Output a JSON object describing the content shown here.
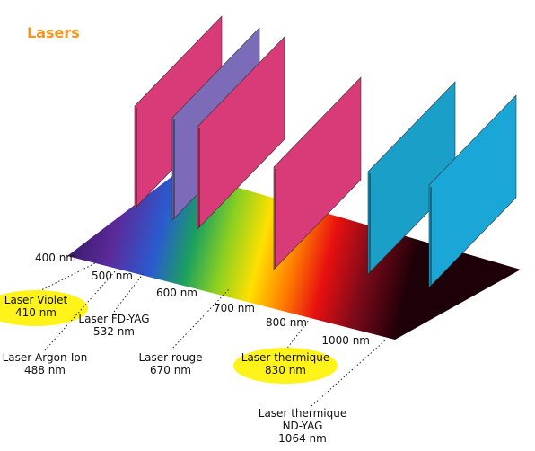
{
  "title": "Lasers",
  "scale": [
    "400 nm",
    "500 nm",
    "600 nm",
    "700 nm",
    "800 nm",
    "1000 nm"
  ],
  "lasers": [
    {
      "lines": [
        "Laser Violet",
        "410 nm"
      ]
    },
    {
      "lines": [
        "Laser FD-YAG",
        "532 nm"
      ]
    },
    {
      "lines": [
        "Laser Argon-Ion",
        "488 nm"
      ]
    },
    {
      "lines": [
        "Laser rouge",
        "670 nm"
      ]
    },
    {
      "lines": [
        "Laser thermique",
        "830 nm"
      ]
    },
    {
      "lines": [
        "Laser thermique",
        "ND-YAG",
        "1064 nm"
      ]
    }
  ]
}
